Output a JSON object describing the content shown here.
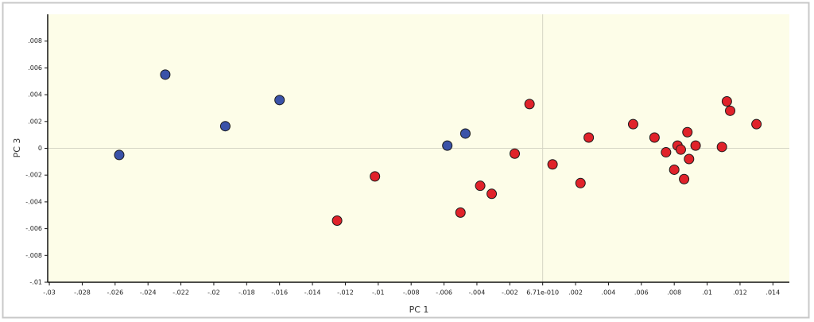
{
  "chart_data": {
    "type": "scatter",
    "x_label": "PC 1",
    "y_label": "PC 3",
    "xlim": [
      -0.0301,
      0.015
    ],
    "ylim": [
      -0.01,
      0.01
    ],
    "xticks": [
      {
        "value": -0.03,
        "label": "-.03"
      },
      {
        "value": -0.028,
        "label": "-.028"
      },
      {
        "value": -0.026,
        "label": "-.026"
      },
      {
        "value": -0.024,
        "label": "-.024"
      },
      {
        "value": -0.022,
        "label": "-.022"
      },
      {
        "value": -0.02,
        "label": "-.02"
      },
      {
        "value": -0.018,
        "label": "-.018"
      },
      {
        "value": -0.016,
        "label": "-.016"
      },
      {
        "value": -0.014,
        "label": "-.014"
      },
      {
        "value": -0.012,
        "label": "-.012"
      },
      {
        "value": -0.01,
        "label": "-.01"
      },
      {
        "value": -0.008,
        "label": "-.008"
      },
      {
        "value": -0.006,
        "label": "-.006"
      },
      {
        "value": -0.004,
        "label": "-.004"
      },
      {
        "value": -0.002,
        "label": "-.002"
      },
      {
        "value": 6.71e-10,
        "label": "6.71e-010"
      },
      {
        "value": 0.002,
        "label": ".002"
      },
      {
        "value": 0.004,
        "label": ".004"
      },
      {
        "value": 0.006,
        "label": ".006"
      },
      {
        "value": 0.008,
        "label": ".008"
      },
      {
        "value": 0.01,
        "label": ".01"
      },
      {
        "value": 0.012,
        "label": ".012"
      },
      {
        "value": 0.014,
        "label": ".014"
      }
    ],
    "yticks": [
      {
        "value": 0.008,
        "label": ".008"
      },
      {
        "value": 0.006,
        "label": ".006"
      },
      {
        "value": 0.004,
        "label": ".004"
      },
      {
        "value": 0.002,
        "label": ".002"
      },
      0,
      {
        "value": -0.002,
        "label": "-.002"
      },
      {
        "value": -0.004,
        "label": "-.004"
      },
      {
        "value": -0.006,
        "label": "-.006"
      },
      {
        "value": -0.008,
        "label": "-.008"
      },
      {
        "value": -0.01,
        "label": "-.01"
      }
    ],
    "origin_lines": true,
    "series": [
      {
        "color": "#3a52a8",
        "x": [
          -0.02575,
          -0.02295,
          -0.0193,
          -0.016,
          -0.0058,
          -0.0047
        ],
        "values": [
          -0.0005,
          0.0055,
          0.00165,
          0.0036,
          0.0002,
          0.0011
        ]
      },
      {
        "color": "#e0222a",
        "x": [
          -0.0125,
          -0.0102,
          -0.005,
          -0.0038,
          -0.0031,
          -0.0017,
          -0.0008,
          0.0006,
          0.0023,
          0.0028,
          0.0055,
          0.0068,
          0.0075,
          0.008,
          0.0082,
          0.0084,
          0.0086,
          0.0088,
          0.0089,
          0.0093,
          0.0109,
          0.0112,
          0.0114,
          0.013
        ],
        "values": [
          -0.0054,
          -0.0021,
          -0.0048,
          -0.0028,
          -0.0034,
          -0.0004,
          0.0033,
          -0.0012,
          -0.0026,
          0.0008,
          0.0018,
          0.0008,
          -0.0003,
          -0.0016,
          0.0002,
          -0.0001,
          -0.0023,
          0.0012,
          -0.0008,
          0.0002,
          0.0001,
          0.0035,
          0.0028,
          0.0018
        ]
      }
    ]
  }
}
